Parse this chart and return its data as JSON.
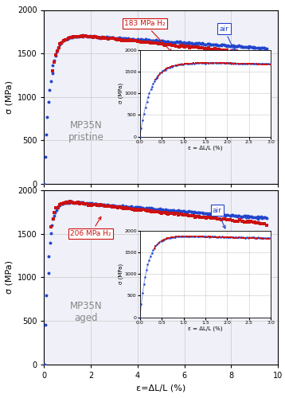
{
  "xlabel": "ε=ΔL/L (%)",
  "ylabel": "σ (MPa)",
  "xlim": [
    0,
    10
  ],
  "ylim_main": [
    0,
    2000
  ],
  "grid_color": "#c8c8c8",
  "panel1_label": "MP35N\npristine",
  "panel2_label": "MP35N\naged",
  "h2_label1": "183 MPa H₂",
  "h2_label2": "206 MPa H₂",
  "air_label": "air",
  "color_air": "#2244cc",
  "color_h2": "#cc1111",
  "inset_xlabel": "ε = ΔL/L (%)",
  "inset_ylabel": "σ (MPa)",
  "bg_color": "#f0f0f8"
}
